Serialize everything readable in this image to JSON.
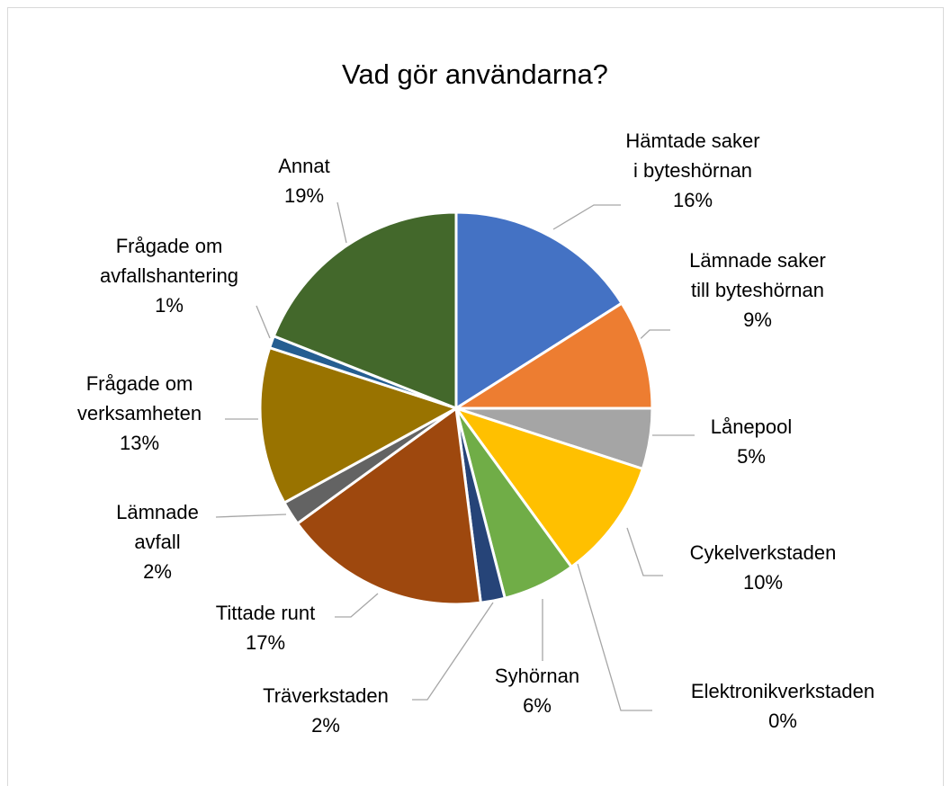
{
  "chart_data": {
    "type": "pie",
    "title": "Vad gör användarna?",
    "categories": [
      "Hämtade saker i byteshörnan",
      "Lämnade saker till byteshörnan",
      "Lånepool",
      "Cykelverkstaden",
      "Elektronikverkstaden",
      "Syhörnan",
      "Träverkstaden",
      "Tittade runt",
      "Lämnade avfall",
      "Frågade om verksamheten",
      "Frågade om avfallshantering",
      "Annat"
    ],
    "values": [
      16,
      9,
      5,
      10,
      0,
      6,
      2,
      17,
      2,
      13,
      1,
      19
    ],
    "value_labels": [
      "16%",
      "9%",
      "5%",
      "10%",
      "0%",
      "6%",
      "2%",
      "17%",
      "2%",
      "13%",
      "1%",
      "19%"
    ],
    "colors": [
      "#4472c4",
      "#ed7d31",
      "#a5a5a5",
      "#ffc000",
      "#5b9bd5",
      "#70ad47",
      "#264478",
      "#9e480e",
      "#636363",
      "#997300",
      "#255e91",
      "#43682b"
    ]
  }
}
